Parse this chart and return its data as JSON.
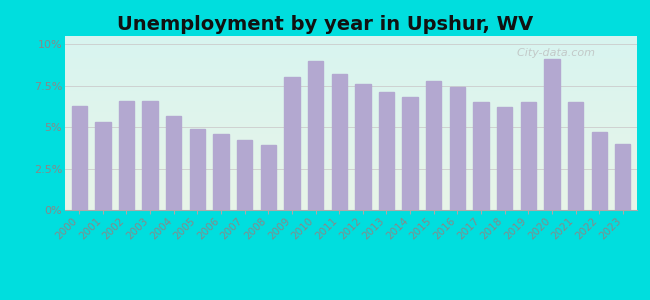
{
  "title": "Unemployment by year in Upshur, WV",
  "years": [
    2000,
    2001,
    2002,
    2003,
    2004,
    2005,
    2006,
    2007,
    2008,
    2009,
    2010,
    2011,
    2012,
    2013,
    2014,
    2015,
    2016,
    2017,
    2018,
    2019,
    2020,
    2021,
    2022,
    2023
  ],
  "values": [
    6.3,
    5.3,
    6.6,
    6.6,
    5.7,
    4.9,
    4.6,
    4.2,
    3.9,
    8.0,
    9.0,
    8.2,
    7.6,
    7.1,
    6.8,
    7.8,
    7.4,
    6.5,
    6.2,
    6.5,
    9.1,
    6.5,
    4.7,
    4.0
  ],
  "bar_color": "#b3a8d0",
  "bg_outer": "#00dede",
  "bg_chart_top": "#d8f4f0",
  "bg_chart_bottom": "#e8f5e8",
  "yticks": [
    0,
    2.5,
    5.0,
    7.5,
    10.0
  ],
  "ytick_labels": [
    "0%",
    "2.5%",
    "5%",
    "7.5%",
    "10%"
  ],
  "ylim": [
    0,
    10.5
  ],
  "title_fontsize": 14,
  "grid_color": "#cccccc",
  "tick_color": "#888888",
  "spine_color": "#aaaaaa"
}
